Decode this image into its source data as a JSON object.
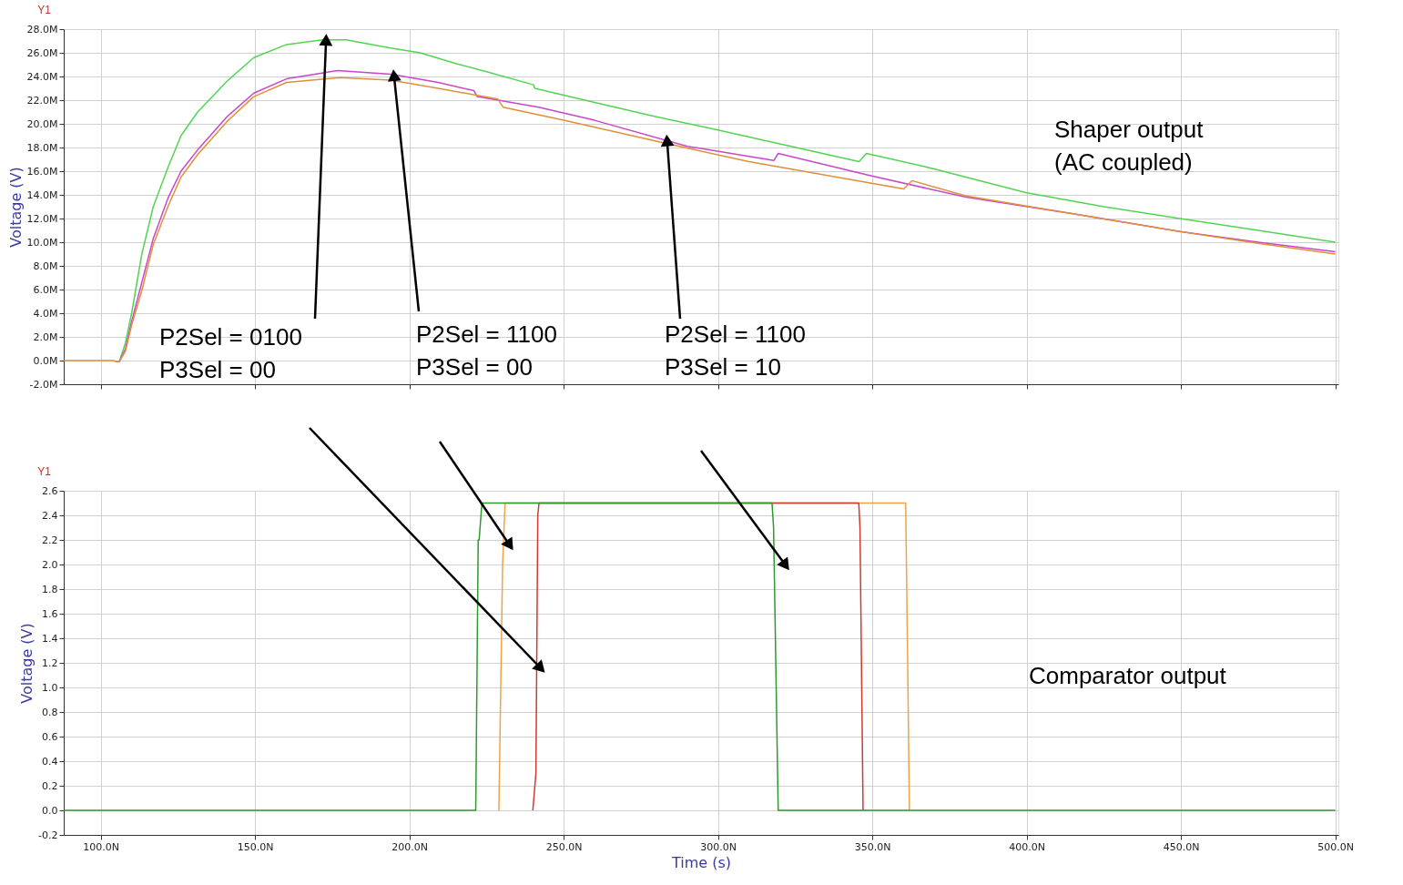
{
  "chart_data": [
    {
      "type": "line",
      "ylabel": "Voltage (V)",
      "xlim": [
        88,
        501
      ],
      "ylim": [
        -2,
        28
      ],
      "grid": true,
      "tick_labels": "y",
      "xticks": [
        {
          "value": 100,
          "label": null
        },
        {
          "value": 150,
          "label": null
        },
        {
          "value": 200,
          "label": null
        },
        {
          "value": 250,
          "label": null
        },
        {
          "value": 300,
          "label": null
        },
        {
          "value": 350,
          "label": null
        },
        {
          "value": 400,
          "label": null
        },
        {
          "value": 450,
          "label": null
        },
        {
          "value": 500,
          "label": null
        }
      ],
      "yticks": [
        {
          "value": -2,
          "label": "-2.0M"
        },
        {
          "value": 0,
          "label": "0.0M"
        },
        {
          "value": 2,
          "label": "2.0M"
        },
        {
          "value": 4,
          "label": "4.0M"
        },
        {
          "value": 6,
          "label": "6.0M"
        },
        {
          "value": 8,
          "label": "8.0M"
        },
        {
          "value": 10,
          "label": "10.0M"
        },
        {
          "value": 12,
          "label": "12.0M"
        },
        {
          "value": 14,
          "label": "14.0M"
        },
        {
          "value": 16,
          "label": "16.0M"
        },
        {
          "value": 18,
          "label": "18.0M"
        },
        {
          "value": 20,
          "label": "20.0M"
        },
        {
          "value": 22,
          "label": "22.0M"
        },
        {
          "value": 24,
          "label": "24.0M"
        },
        {
          "value": 26,
          "label": "26.0M"
        },
        {
          "value": 28,
          "label": "28.0M"
        }
      ],
      "annotations": [
        "Y1",
        {
          "text": "P2Sel = 0100\nP3Sel = 00",
          "x": 173,
          "y": 27.1
        },
        {
          "text": "P2Sel = 1100\nP3Sel = 00",
          "x": 195,
          "y": 24.1
        },
        {
          "text": "P2Sel = 1100\nP3Sel = 10",
          "x": 283.5,
          "y": 18.6
        },
        "Shaper output\n(AC coupled)"
      ],
      "series": [
        {
          "color": "#52d452",
          "x": [
            105,
            106,
            108,
            110,
            113.3,
            117,
            121.9,
            126,
            131.4,
            140.9,
            149.6,
            160.2,
            171.8,
            179.5,
            193.9,
            203.5,
            215,
            225,
            240.2,
            240.6,
            260,
            280,
            299.6,
            320,
            345.7,
            348.1,
            370,
            399.7,
            425,
            449.6,
            475,
            500
          ],
          "values": [
            -0.1,
            -0.1,
            1.5,
            4.0,
            9.0,
            13.0,
            16.4,
            19.0,
            21.0,
            23.6,
            25.6,
            26.7,
            27.1,
            27.1,
            26.4,
            26.0,
            25.1,
            24.4,
            23.3,
            23.0,
            21.8,
            20.6,
            19.5,
            18.3,
            16.8,
            17.5,
            16.2,
            14.2,
            13.0,
            12.0,
            11.0,
            10.0
          ]
        },
        {
          "color": "#c846c8",
          "x": [
            105,
            106,
            108,
            110,
            113.3,
            117,
            121.9,
            126,
            131.4,
            140.9,
            149.6,
            160.2,
            176.7,
            194,
            209.3,
            220.9,
            222,
            241.9,
            260,
            290.1,
            318.1,
            319.5,
            349.8,
            380.4,
            415,
            449.6,
            475,
            500
          ],
          "values": [
            -0.1,
            -0.1,
            1.0,
            3.3,
            6.6,
            10.3,
            13.8,
            16.0,
            17.8,
            20.6,
            22.6,
            23.8,
            24.5,
            24.2,
            23.5,
            22.8,
            22.3,
            21.4,
            20.3,
            18.1,
            16.9,
            17.5,
            15.6,
            13.8,
            12.4,
            10.9,
            10.0,
            9.2
          ]
        },
        {
          "color": "#e08f3a",
          "x": [
            88,
            104,
            105,
            106,
            108,
            110,
            113.3,
            117,
            121.9,
            126,
            131.4,
            140.9,
            149.6,
            160.2,
            177.6,
            194,
            209.3,
            228.6,
            230.4,
            250,
            280.6,
            310,
            360.2,
            362.8,
            380.4,
            415,
            449.6,
            475,
            500
          ],
          "values": [
            0,
            0,
            -0.1,
            -0.1,
            0.8,
            3.0,
            5.9,
            9.8,
            13.1,
            15.5,
            17.4,
            20.2,
            22.3,
            23.5,
            23.9,
            23.7,
            23.0,
            22.1,
            21.4,
            20.3,
            18.5,
            16.8,
            14.5,
            15.2,
            13.9,
            12.4,
            10.9,
            9.9,
            9.0
          ]
        }
      ]
    },
    {
      "type": "line",
      "ylabel": "Voltage (V)",
      "xlabel": "Time (s)",
      "xlim": [
        88,
        501
      ],
      "ylim": [
        -0.2,
        2.6
      ],
      "grid": true,
      "xticks": [
        {
          "value": 100,
          "label": "100.0N"
        },
        {
          "value": 150,
          "label": "150.0N"
        },
        {
          "value": 200,
          "label": "200.0N"
        },
        {
          "value": 250,
          "label": "250.0N"
        },
        {
          "value": 300,
          "label": "300.0N"
        },
        {
          "value": 350,
          "label": "350.0N"
        },
        {
          "value": 400,
          "label": "400.0N"
        },
        {
          "value": 450,
          "label": "450.0N"
        },
        {
          "value": 500,
          "label": "500.0N"
        }
      ],
      "yticks": [
        {
          "value": -0.2,
          "label": "-0.2"
        },
        {
          "value": 0,
          "label": "0.0"
        },
        {
          "value": 0.2,
          "label": "0.2"
        },
        {
          "value": 0.4,
          "label": "0.4"
        },
        {
          "value": 0.6,
          "label": "0.6"
        },
        {
          "value": 0.8,
          "label": "0.8"
        },
        {
          "value": 1.0,
          "label": "1.0"
        },
        {
          "value": 1.2,
          "label": "1.2"
        },
        {
          "value": 1.4,
          "label": "1.4"
        },
        {
          "value": 1.6,
          "label": "1.6"
        },
        {
          "value": 1.8,
          "label": "1.8"
        },
        {
          "value": 2.0,
          "label": "2.0"
        },
        {
          "value": 2.2,
          "label": "2.2"
        },
        {
          "value": 2.4,
          "label": "2.4"
        },
        {
          "value": 2.6,
          "label": "2.6"
        }
      ],
      "annotations": [
        "Y1",
        "Comparator output"
      ],
      "series": [
        {
          "color": "#f0a346",
          "x": [
            229,
            230.2,
            231,
            360.8,
            361.5,
            362
          ],
          "values": [
            0,
            2.0,
            2.5,
            2.5,
            1.1,
            0
          ]
        },
        {
          "color": "#d03a2e",
          "x": [
            240,
            241,
            241.6,
            242,
            345.6,
            346,
            347
          ],
          "values": [
            0,
            0.3,
            2.4,
            2.5,
            2.5,
            2.3,
            0
          ]
        },
        {
          "color": "#2e9a2e",
          "x": [
            88,
            221.5,
            222.3,
            222.6,
            223.5,
            317.5,
            318,
            319.5,
            500
          ],
          "values": [
            0,
            0,
            2.2,
            2.2,
            2.5,
            2.5,
            2.3,
            0,
            0
          ]
        }
      ]
    }
  ]
}
